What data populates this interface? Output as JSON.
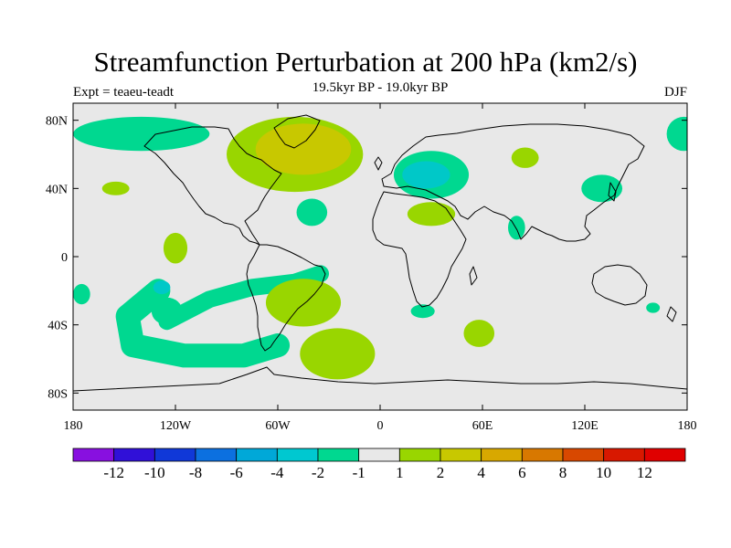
{
  "title": "Streamfunction Perturbation at 200 hPa (km2/s)",
  "left_subtitle": "Expt = teaeu-teadt",
  "center_subtitle": "19.5kyr BP - 19.0kyr BP",
  "right_subtitle": "DJF",
  "map": {
    "projection": "cylindrical-equidistant",
    "lon_range": [
      -180,
      180
    ],
    "lat_range": [
      -90,
      90
    ],
    "background_color": "#e8e8e8",
    "lat_ticks": [
      {
        "lat": 80,
        "label": "80N"
      },
      {
        "lat": 40,
        "label": "40N"
      },
      {
        "lat": 0,
        "label": "0"
      },
      {
        "lat": -40,
        "label": "40S"
      },
      {
        "lat": -80,
        "label": "80S"
      }
    ],
    "lon_ticks": [
      {
        "lon": -180,
        "label": "180"
      },
      {
        "lon": -120,
        "label": "120W"
      },
      {
        "lon": -60,
        "label": "60W"
      },
      {
        "lon": 0,
        "label": "0"
      },
      {
        "lon": 60,
        "label": "60E"
      },
      {
        "lon": 120,
        "label": "120E"
      },
      {
        "lon": 180,
        "label": "180"
      }
    ],
    "anomalies": [
      {
        "name": "nh-arctic-west",
        "lon": -140,
        "lat": 72,
        "rlon": 40,
        "rlat": 10,
        "color": "#00d890"
      },
      {
        "name": "nh-arctic-east",
        "lon": 178,
        "lat": 72,
        "rlon": 10,
        "rlat": 10,
        "color": "#00d890"
      },
      {
        "name": "north-atlantic-high",
        "lon": -45,
        "lat": 63,
        "rlon": 28,
        "rlat": 15,
        "color": "#c8c800"
      },
      {
        "name": "north-atlantic-ring",
        "lon": -50,
        "lat": 60,
        "rlon": 40,
        "rlat": 22,
        "color": "#99d600"
      },
      {
        "name": "europe-low-outer",
        "lon": 30,
        "lat": 48,
        "rlon": 22,
        "rlat": 14,
        "color": "#00d890"
      },
      {
        "name": "europe-low-core",
        "lon": 27,
        "lat": 48,
        "rlon": 14,
        "rlat": 8,
        "color": "#00c8c8"
      },
      {
        "name": "siberia-patch",
        "lon": 85,
        "lat": 58,
        "rlon": 8,
        "rlat": 6,
        "color": "#99d600"
      },
      {
        "name": "east-asia-low",
        "lon": 130,
        "lat": 40,
        "rlon": 12,
        "rlat": 8,
        "color": "#00d890"
      },
      {
        "name": "north-africa-high",
        "lon": 30,
        "lat": 25,
        "rlon": 14,
        "rlat": 7,
        "color": "#99d600"
      },
      {
        "name": "arabia-low",
        "lon": 80,
        "lat": 17,
        "rlon": 5,
        "rlat": 7,
        "color": "#00d890"
      },
      {
        "name": "atlantic-low",
        "lon": -40,
        "lat": 26,
        "rlon": 9,
        "rlat": 8,
        "color": "#00d890"
      },
      {
        "name": "pacific-high-n",
        "lon": -155,
        "lat": 40,
        "rlon": 8,
        "rlat": 4,
        "color": "#99d600"
      },
      {
        "name": "pacific-high-tropics",
        "lon": -120,
        "lat": 5,
        "rlon": 7,
        "rlat": 9,
        "color": "#99d600"
      },
      {
        "name": "south-america-high",
        "lon": -45,
        "lat": -27,
        "rlon": 22,
        "rlat": 14,
        "color": "#99d600"
      },
      {
        "name": "south-atlantic-high",
        "lon": -25,
        "lat": -57,
        "rlon": 22,
        "rlat": 15,
        "color": "#99d600"
      },
      {
        "name": "south-africa-low",
        "lon": 25,
        "lat": -32,
        "rlon": 7,
        "rlat": 4,
        "color": "#00d890"
      },
      {
        "name": "indian-ocean-high",
        "lon": 58,
        "lat": -45,
        "rlon": 9,
        "rlat": 8,
        "color": "#99d600"
      },
      {
        "name": "australia-low",
        "lon": 160,
        "lat": -30,
        "rlon": 4,
        "rlat": 3,
        "color": "#00d890"
      },
      {
        "name": "pacific-edge-low",
        "lon": -175,
        "lat": -22,
        "rlon": 5,
        "rlat": 6,
        "color": "#00d890"
      },
      {
        "name": "south-pacific-low-core",
        "lon": -128,
        "lat": -18,
        "rlon": 5,
        "rlat": 4,
        "color": "#00c8c8"
      },
      {
        "name": "sh-polar-high",
        "lon": -125,
        "lat": -32,
        "rlon": 9,
        "rlat": 8,
        "color": "#00d890"
      }
    ],
    "wave_bands": [
      {
        "name": "sh-wave-train",
        "color": "#00d890",
        "points": [
          [
            -130,
            -20
          ],
          [
            -148,
            -35
          ],
          [
            -145,
            -52
          ],
          [
            -115,
            -58
          ],
          [
            -80,
            -58
          ],
          [
            -60,
            -52
          ]
        ],
        "width_deg": 14
      },
      {
        "name": "sh-subtropical-band",
        "color": "#00d890",
        "points": [
          [
            -125,
            -38
          ],
          [
            -100,
            -25
          ],
          [
            -75,
            -18
          ],
          [
            -50,
            -15
          ],
          [
            -35,
            -10
          ]
        ],
        "width_deg": 10
      }
    ]
  },
  "colorbar": {
    "colors": [
      "#8810e0",
      "#3010d8",
      "#1038d8",
      "#0c70e0",
      "#00a8d8",
      "#00c8d0",
      "#00d890",
      "#e8e8e8",
      "#99d600",
      "#c8c800",
      "#d8a800",
      "#d87800",
      "#d84800",
      "#d81800",
      "#e00000"
    ],
    "labels": [
      "-12",
      "-10",
      "-8",
      "-6",
      "-4",
      "-2",
      "-1",
      "1",
      "2",
      "4",
      "6",
      "8",
      "10",
      "12"
    ]
  }
}
